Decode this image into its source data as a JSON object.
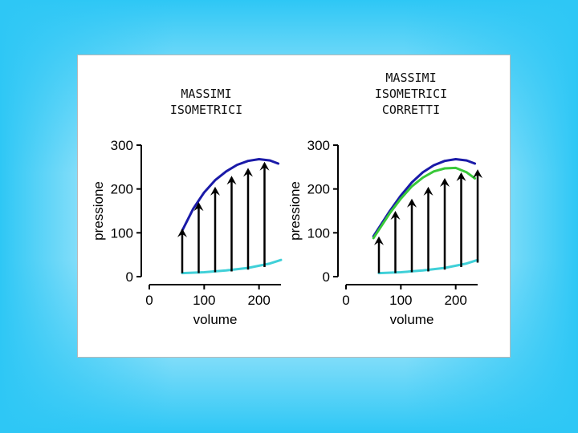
{
  "panels": [
    {
      "title": "MASSIMI\nISOMETRICI",
      "chart_data": {
        "type": "line",
        "xlabel": "volume",
        "ylabel": "pressione",
        "xlim": [
          0,
          240
        ],
        "ylim": [
          0,
          300
        ],
        "xticks": [
          0,
          100,
          200
        ],
        "yticks": [
          0,
          100,
          200,
          300
        ],
        "series": [
          {
            "color": "#1a1aa8",
            "x": [
              60,
              80,
              100,
              120,
              140,
              160,
              180,
              200,
              220,
              235
            ],
            "y": [
              105,
              155,
              192,
              220,
              240,
              255,
              264,
              268,
              265,
              258
            ]
          },
          {
            "color": "#40d0d8",
            "x": [
              60,
              100,
              140,
              180,
              220,
              240
            ],
            "y": [
              8,
              10,
              14,
              20,
              30,
              38
            ]
          }
        ],
        "arrows": {
          "color": "#000000",
          "x": [
            60,
            90,
            120,
            150,
            180,
            210
          ],
          "y_from": [
            8,
            8,
            10,
            12,
            16,
            22
          ],
          "y_to": [
            110,
            170,
            205,
            230,
            248,
            262
          ]
        }
      }
    },
    {
      "title": "MASSIMI\nISOMETRICI\nCORRETTI",
      "chart_data": {
        "type": "line",
        "xlabel": "volume",
        "ylabel": "pressione",
        "xlim": [
          0,
          240
        ],
        "ylim": [
          0,
          300
        ],
        "xticks": [
          0,
          100,
          200
        ],
        "yticks": [
          0,
          100,
          200,
          300
        ],
        "series": [
          {
            "color": "#1a1aa8",
            "x": [
              50,
              80,
              100,
              120,
              140,
              160,
              180,
              200,
              220,
              235
            ],
            "y": [
              92,
              150,
              185,
              215,
              238,
              254,
              264,
              268,
              265,
              258
            ]
          },
          {
            "color": "#38c838",
            "x": [
              50,
              80,
              100,
              120,
              140,
              160,
              180,
              200,
              220,
              235
            ],
            "y": [
              88,
              145,
              178,
              206,
              226,
              240,
              247,
              248,
              238,
              224
            ]
          },
          {
            "color": "#40d0d8",
            "x": [
              60,
              100,
              140,
              180,
              220,
              240
            ],
            "y": [
              8,
              10,
              14,
              20,
              30,
              38
            ]
          }
        ],
        "arrows": {
          "color": "#000000",
          "x": [
            60,
            90,
            120,
            150,
            180,
            210,
            240
          ],
          "y_from": [
            8,
            8,
            10,
            12,
            16,
            22,
            32
          ],
          "y_to": [
            92,
            150,
            178,
            205,
            225,
            238,
            245
          ]
        }
      }
    }
  ]
}
